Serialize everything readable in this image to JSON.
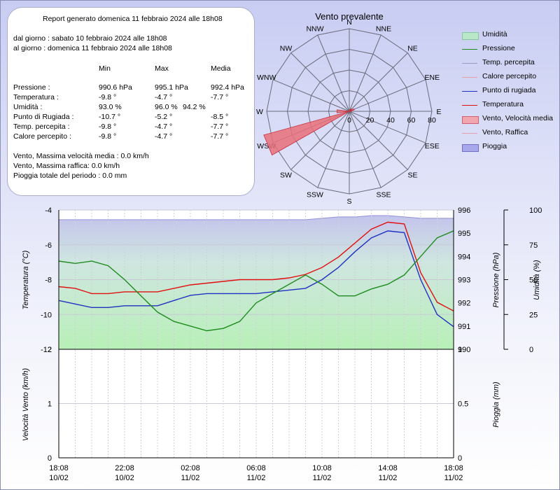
{
  "report": {
    "title": "Report generato domenica 11 febbraio 2024 alle 18h08",
    "from": "dal giorno : sabato 10 febbraio 2024 alle 18h08",
    "to": "al giorno : domenica 11 febbraio 2024 alle 18h08",
    "headers": [
      "Min",
      "Max",
      "Media"
    ],
    "rows": [
      {
        "label": "Pressione :",
        "min": "990.6 hPa",
        "max": "995.1 hPa",
        "avg": "992.4 hPa"
      },
      {
        "label": "Temperatura :",
        "min": "-9.8 °",
        "max": "-4.7 °",
        "avg": "-7.7 °"
      },
      {
        "label": "Umidità :",
        "min": "93.0 %",
        "max": "96.0 %",
        "avg": "94.2 %"
      },
      {
        "label": "Punto di Rugiada :",
        "min": "-10.7 °",
        "max": "-5.2 °",
        "avg": "-8.5 °"
      },
      {
        "label": "Temp. percepita :",
        "min": "-9.8 °",
        "max": "-4.7 °",
        "avg": "-7.7 °"
      },
      {
        "label": "Calore percepito :",
        "min": "-9.8 °",
        "max": "-4.7 °",
        "avg": "-7.7 °"
      }
    ],
    "wind_avg": "Vento, Massima velocità media : 0.0 km/h",
    "wind_gust": "Vento, Massima raffica: 0.0 km/h",
    "rain_total": "Pioggia totale del periodo : 0.0 mm"
  },
  "legend": [
    {
      "label": "Umidità",
      "color": "#2bbf2b",
      "kind": "fill-green"
    },
    {
      "label": "Pressione",
      "color": "#1e8c1e",
      "kind": "line"
    },
    {
      "label": "Temp. percepita",
      "color": "#9a9ac8",
      "kind": "line"
    },
    {
      "label": "Calore percepito",
      "color": "#e8a0a0",
      "kind": "line"
    },
    {
      "label": "Punto di rugiada",
      "color": "#2030c0",
      "kind": "line"
    },
    {
      "label": "Temperatura",
      "color": "#e01010",
      "kind": "line"
    },
    {
      "label": "Vento, Velocità media",
      "color": "#e8707a",
      "kind": "fill-red"
    },
    {
      "label": "Vento, Raffica",
      "color": "#e8a0a8",
      "kind": "line"
    },
    {
      "label": "Pioggia",
      "color": "#9090e0",
      "kind": "fill-blue"
    }
  ],
  "chart_data": [
    {
      "type": "rose",
      "title": "Vento prevalente",
      "directions": [
        "N",
        "NNE",
        "NE",
        "ENE",
        "E",
        "ESE",
        "SE",
        "SSE",
        "S",
        "SSW",
        "SW",
        "WSW",
        "W",
        "WNW",
        "NW",
        "NNW"
      ],
      "radial_ticks": [
        0,
        20,
        40,
        60,
        80
      ],
      "rmax": 80,
      "values": [
        0,
        2,
        3,
        5,
        2,
        0,
        0,
        0,
        0,
        0,
        0,
        86,
        12,
        0,
        0,
        0
      ],
      "colors": {
        "fill": "#e8707a"
      }
    },
    {
      "type": "line",
      "x_ticks": [
        [
          "18:08",
          "10/02"
        ],
        [
          "22:08",
          "10/02"
        ],
        [
          "02:08",
          "11/02"
        ],
        [
          "06:08",
          "11/02"
        ],
        [
          "10:08",
          "11/02"
        ],
        [
          "14:08",
          "11/02"
        ],
        [
          "18:08",
          "11/02"
        ]
      ],
      "ylabel": "Temperatura (°C)",
      "ylabel2": "Pressione (hPa)",
      "ylabel3": "Umidità (%)",
      "ylim": [
        -12,
        -4
      ],
      "ylim2": [
        990,
        996
      ],
      "ylim3": [
        0,
        100
      ],
      "y_ticks": [
        -4,
        -6,
        -8,
        -10,
        -12
      ],
      "y2_ticks": [
        996,
        995,
        994,
        993,
        992,
        991,
        990
      ],
      "y3_ticks": [
        100,
        75,
        50,
        25,
        0
      ],
      "x": [
        0,
        1,
        2,
        3,
        4,
        5,
        6,
        7,
        8,
        9,
        10,
        11,
        12,
        13,
        14,
        15,
        16,
        17,
        18,
        19,
        20,
        21,
        22,
        23,
        24
      ],
      "series": [
        {
          "name": "Temperatura",
          "axis": "temp",
          "color": "#e01010",
          "values": [
            -8.4,
            -8.5,
            -8.8,
            -8.8,
            -8.7,
            -8.7,
            -8.7,
            -8.5,
            -8.3,
            -8.2,
            -8.1,
            -8.0,
            -8.0,
            -8.0,
            -7.9,
            -7.7,
            -7.3,
            -6.7,
            -5.9,
            -5.1,
            -4.7,
            -4.8,
            -7.6,
            -9.3,
            -9.8
          ]
        },
        {
          "name": "Punto di rugiada",
          "axis": "temp",
          "color": "#2030c0",
          "values": [
            -9.2,
            -9.4,
            -9.6,
            -9.6,
            -9.5,
            -9.5,
            -9.5,
            -9.2,
            -8.9,
            -8.8,
            -8.8,
            -8.8,
            -8.8,
            -8.7,
            -8.6,
            -8.5,
            -8.0,
            -7.3,
            -6.4,
            -5.6,
            -5.2,
            -5.3,
            -8.0,
            -10.0,
            -10.7
          ]
        },
        {
          "name": "Pressione",
          "axis": "press",
          "color": "#1e8c1e",
          "values": [
            993.8,
            993.7,
            993.8,
            993.6,
            993.0,
            992.3,
            991.6,
            991.2,
            991.0,
            990.8,
            990.9,
            991.2,
            992.0,
            992.4,
            992.8,
            993.2,
            992.8,
            992.3,
            992.3,
            992.6,
            992.8,
            993.2,
            994.0,
            994.8,
            995.1
          ]
        },
        {
          "name": "Umidità",
          "axis": "hum",
          "color": "#2bbf2b",
          "values": [
            93,
            93,
            93,
            93,
            93,
            93,
            93,
            93,
            93,
            93,
            93,
            93,
            93,
            93,
            93,
            93,
            94,
            95,
            95,
            96,
            96,
            95,
            94,
            94,
            94
          ]
        }
      ]
    },
    {
      "type": "bar",
      "x_ticks": [
        [
          "18:08",
          "10/02"
        ],
        [
          "22:08",
          "10/02"
        ],
        [
          "02:08",
          "11/02"
        ],
        [
          "06:08",
          "11/02"
        ],
        [
          "10:08",
          "11/02"
        ],
        [
          "14:08",
          "11/02"
        ],
        [
          "18:08",
          "11/02"
        ]
      ],
      "ylabel": "Velocità Vento (km/h)",
      "ylabel2": "Pioggia (mm)",
      "ylim": [
        0,
        2
      ],
      "ylim2": [
        0,
        1
      ],
      "y_ticks": [
        2,
        1,
        0
      ],
      "y2_ticks": [
        1,
        0.5,
        0
      ],
      "series": [
        {
          "name": "Vento, Velocità media",
          "values": [
            0,
            0,
            0,
            0,
            0,
            0,
            0
          ]
        },
        {
          "name": "Pioggia",
          "values": [
            0,
            0,
            0,
            0,
            0,
            0,
            0
          ]
        }
      ]
    }
  ]
}
